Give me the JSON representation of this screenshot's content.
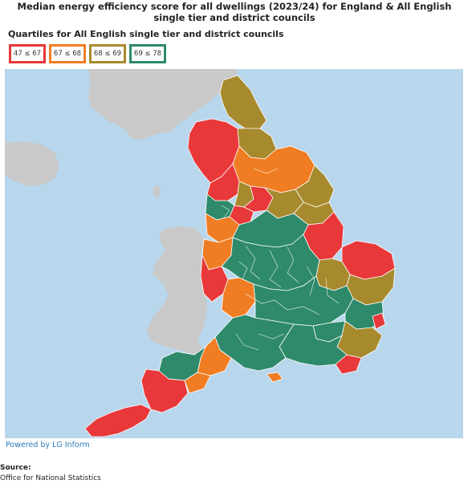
{
  "title": "Median energy efficiency score for all dwellings (2023/24) for England & All English single tier and district councils",
  "legend": {
    "title": "Quartiles for All English single tier and district councils",
    "items": [
      {
        "label": "47 ≤ 67",
        "color": "#e8383a"
      },
      {
        "label": "67 ≤ 68",
        "color": "#f07d23"
      },
      {
        "label": "68 ≤ 69",
        "color": "#a88a2e"
      },
      {
        "label": "69 ≤ 78",
        "color": "#2e8a6a"
      }
    ]
  },
  "colors": {
    "sea": "#b8d6ec",
    "other_land": "#c9c9c9",
    "q1": "#e8383a",
    "q2": "#f07d23",
    "q3": "#a88a2e",
    "q4": "#2e8a6a"
  },
  "credit": "Powered by LG Inform",
  "source": {
    "label": "Source:",
    "value": "Office for National Statistics"
  }
}
